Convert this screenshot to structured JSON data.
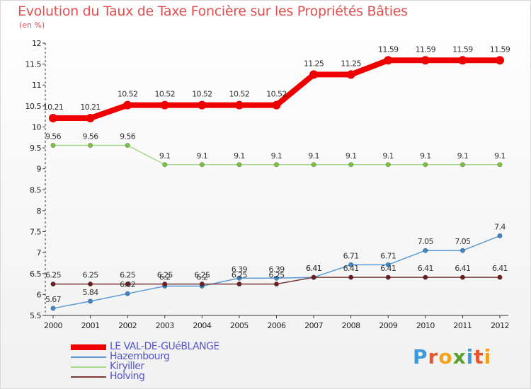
{
  "header": {
    "title": "Evolution du Taux de Taxe Foncière sur les Propriétés Bâties",
    "subtitle": "(en %)"
  },
  "logo": {
    "letters": [
      "P",
      "r",
      "o",
      "x",
      "i",
      "t",
      "i"
    ],
    "colors": [
      "#3b9ad9",
      "#e8562a",
      "#f2a31b",
      "#5aa02c",
      "#3b9ad9",
      "#e8562a",
      "#f2a31b"
    ]
  },
  "chart_data": {
    "type": "line",
    "title": "Evolution du Taux de Taxe Foncière sur les Propriétés Bâties",
    "ylabel": "(en %)",
    "xlabel": "",
    "x": [
      "2000",
      "2001",
      "2002",
      "2003",
      "2004",
      "2005",
      "2006",
      "2007",
      "2008",
      "2009",
      "2010",
      "2011",
      "2012"
    ],
    "ylim": [
      5.5,
      12
    ],
    "yticks": [
      "5.5",
      "6",
      "6.5",
      "7",
      "7.5",
      "8",
      "8.5",
      "9",
      "9.5",
      "10",
      "10.5",
      "11",
      "11.5",
      "12"
    ],
    "grid": false,
    "legend_position": "bottom-left",
    "series": [
      {
        "name": "LE VAL-DE-GUéBLANGE",
        "color": "#ee0000",
        "emphasis": "thick",
        "values": [
          10.21,
          10.21,
          10.52,
          10.52,
          10.52,
          10.52,
          10.52,
          11.25,
          11.25,
          11.59,
          11.59,
          11.59,
          11.59
        ],
        "labels": [
          "10.21",
          "10.21",
          "10.52",
          "10.52",
          "10.52",
          "10.52",
          "10.52",
          "11.25",
          "11.25",
          "11.59",
          "11.59",
          "11.59",
          "11.59"
        ]
      },
      {
        "name": "Hazembourg",
        "color": "#5b9bd5",
        "marker_color": "#3d85c6",
        "values": [
          5.67,
          5.84,
          6.02,
          6.2,
          6.2,
          6.39,
          6.39,
          6.41,
          6.71,
          6.71,
          7.05,
          7.05,
          7.4
        ],
        "labels": [
          "5.67",
          "5.84",
          "6.02",
          "6.2",
          "6.2",
          "6.39",
          "6.39",
          "6.41",
          "6.71",
          "6.71",
          "7.05",
          "7.05",
          "7.4"
        ]
      },
      {
        "name": "Kiryiller",
        "color": "#a8d88a",
        "marker_color": "#7cc242",
        "values": [
          9.56,
          9.56,
          9.56,
          9.1,
          9.1,
          9.1,
          9.1,
          9.1,
          9.1,
          9.1,
          9.1,
          9.1,
          9.1
        ],
        "labels": [
          "9.56",
          "9.56",
          "9.56",
          "9.1",
          "9.1",
          "9.1",
          "9.1",
          "9.1",
          "9.1",
          "9.1",
          "9.1",
          "9.1",
          "9.1"
        ]
      },
      {
        "name": "Holving",
        "color": "#7a3a3a",
        "marker_color": "#6b1f1f",
        "values": [
          6.25,
          6.25,
          6.25,
          6.25,
          6.25,
          6.25,
          6.25,
          6.41,
          6.41,
          6.41,
          6.41,
          6.41,
          6.41
        ],
        "labels": [
          "6.25",
          "6.25",
          "6.25",
          "6.25",
          "6.25",
          "6.25",
          "6.25",
          "6.41",
          "6.41",
          "6.41",
          "6.41",
          "6.41",
          "6.41"
        ]
      }
    ]
  }
}
